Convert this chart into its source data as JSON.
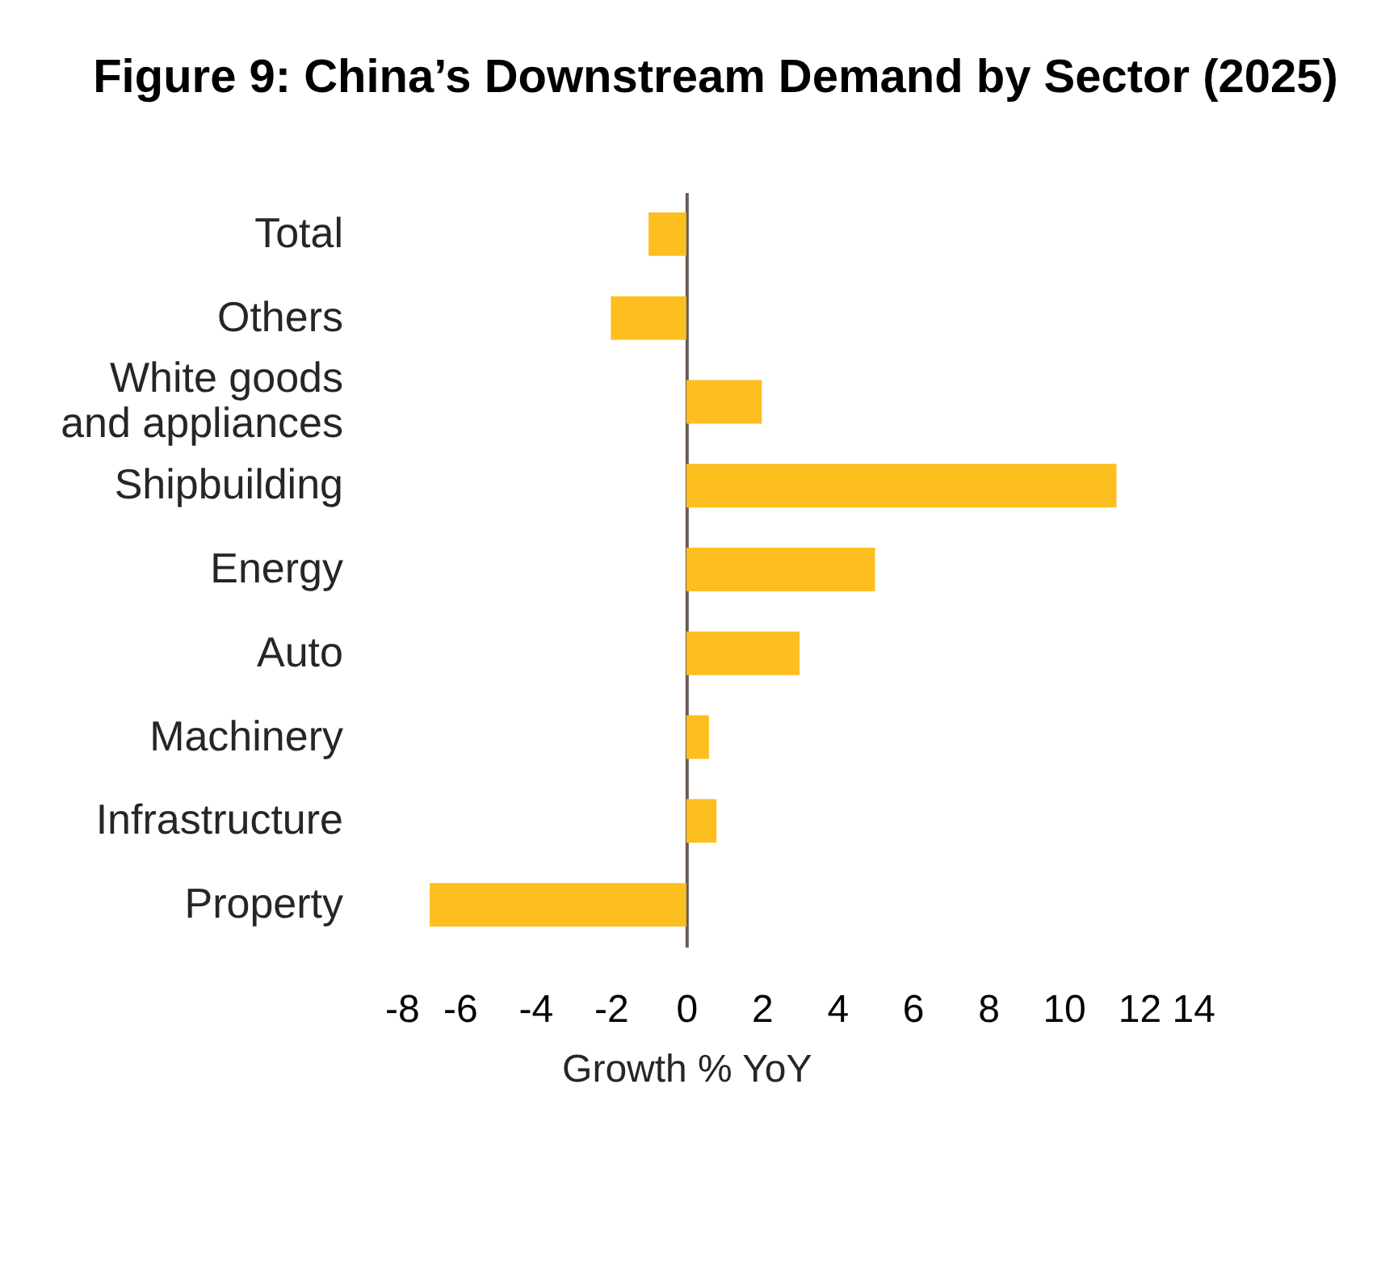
{
  "chart_data": {
    "type": "bar",
    "orientation": "horizontal",
    "title": "Figure 9: China’s Downstream Demand by Sector (2025)",
    "xlabel": "Growth % YoY",
    "categories": [
      "Total",
      "Others",
      "White goods\nand appliances",
      "Shipbuilding",
      "Energy",
      "Auto",
      "Machinery",
      "Infrastructure",
      "Property"
    ],
    "values": [
      -1.0,
      -2.0,
      2.0,
      11.4,
      5.0,
      3.0,
      0.6,
      0.8,
      -6.8
    ],
    "color": "#fdbe20",
    "xlim": [
      -8,
      14
    ],
    "xticks": [
      -8,
      -6,
      -4,
      -2,
      0,
      2,
      4,
      6,
      8,
      10,
      12,
      14
    ]
  }
}
